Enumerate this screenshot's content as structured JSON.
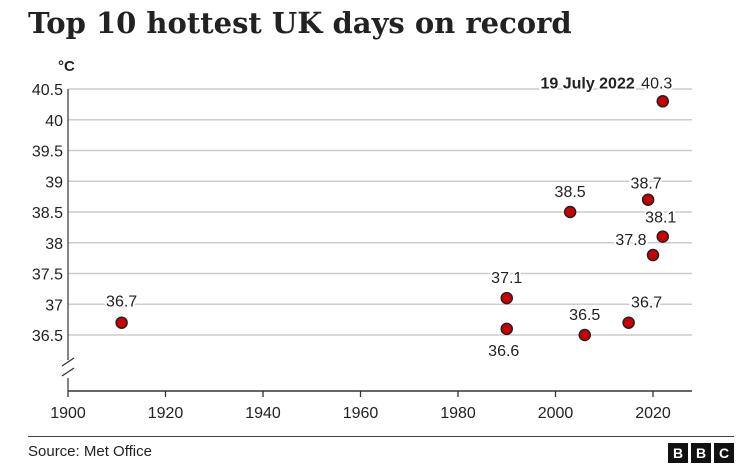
{
  "chart_data": {
    "type": "scatter",
    "title": "Top 10 hottest UK days on record",
    "ylabel": "°C",
    "xlim": [
      1900,
      2028
    ],
    "ylim": [
      36.0,
      40.5
    ],
    "x_ticks": [
      "1900",
      "1920",
      "1940",
      "1960",
      "1980",
      "2000",
      "2020"
    ],
    "y_ticks": [
      "40.5",
      "40",
      "39.5",
      "39",
      "38.5",
      "38",
      "37.5",
      "37",
      "36.5"
    ],
    "grid": true,
    "points": [
      {
        "x": 1911,
        "y": 36.7,
        "label": "36.7"
      },
      {
        "x": 1990,
        "y": 37.1,
        "label": "37.1"
      },
      {
        "x": 1990,
        "y": 36.6,
        "label": "36.6"
      },
      {
        "x": 2003,
        "y": 38.5,
        "label": "38.5"
      },
      {
        "x": 2006,
        "y": 36.5,
        "label": "36.5"
      },
      {
        "x": 2015,
        "y": 36.7,
        "label": "36.7"
      },
      {
        "x": 2019,
        "y": 38.7,
        "label": "38.7"
      },
      {
        "x": 2020,
        "y": 37.8,
        "label": "37.8"
      },
      {
        "x": 2022,
        "y": 38.1,
        "label": "38.1"
      },
      {
        "x": 2022,
        "y": 40.3,
        "label": "40.3"
      }
    ],
    "annotation": "19 July 2022"
  },
  "footer": {
    "source": "Source: Met Office",
    "logo": [
      "B",
      "B",
      "C"
    ]
  },
  "colors": {
    "marker_fill": "#cc0000",
    "marker_stroke": "#222222",
    "grid": "#cccccc",
    "text": "#222222"
  }
}
